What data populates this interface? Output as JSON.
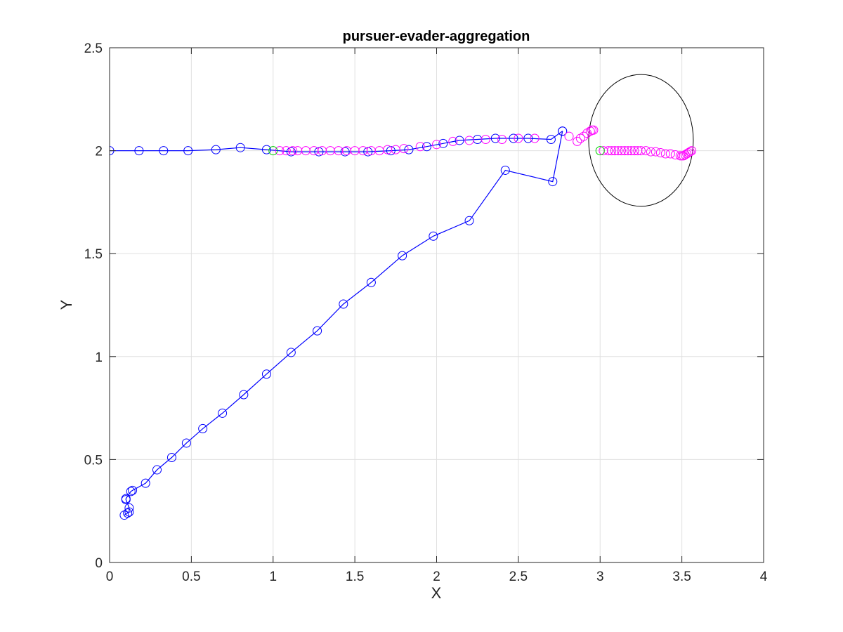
{
  "chart_data": {
    "type": "scatter",
    "title": "pursuer-evader-aggregation",
    "xlabel": "X",
    "ylabel": "Y",
    "xlim": [
      0,
      4
    ],
    "ylim": [
      0,
      2.5
    ],
    "grid": true,
    "x_ticks": [
      "0",
      "0.5",
      "1",
      "1.5",
      "2",
      "2.5",
      "3",
      "3.5",
      "4"
    ],
    "y_ticks": [
      "0",
      "0.5",
      "1",
      "1.5",
      "2",
      "2.5"
    ],
    "x_tick_values": [
      0,
      0.5,
      1,
      1.5,
      2,
      2.5,
      3,
      3.5,
      4
    ],
    "y_tick_values": [
      0,
      0.5,
      1,
      1.5,
      2,
      2.5
    ],
    "colors": {
      "pursuer": "#0000ff",
      "evader": "#ff00ff",
      "start": "#00cc00",
      "circle": "#000000",
      "grid": "#e0e0e0",
      "axes": "#262626"
    },
    "series": [
      {
        "marker": "circle",
        "line": true,
        "color": "#0000ff",
        "x": [
          0.0,
          0.18,
          0.33,
          0.48,
          0.65,
          0.8,
          0.96,
          1.11,
          1.28,
          1.44,
          1.58,
          1.72,
          1.83,
          1.94,
          2.04,
          2.14,
          2.25,
          2.36,
          2.47,
          2.56,
          2.7,
          2.77
        ],
        "y": [
          2.0,
          2.0,
          2.0,
          2.0,
          2.005,
          2.015,
          2.005,
          1.995,
          1.995,
          1.995,
          1.995,
          2.0,
          2.005,
          2.02,
          2.035,
          2.05,
          2.055,
          2.06,
          2.06,
          2.06,
          2.055,
          2.095
        ]
      },
      {
        "marker": "circle",
        "line": true,
        "color": "#0000ff",
        "x": [
          2.77,
          2.71,
          2.42,
          2.2,
          1.98,
          1.79,
          1.6,
          1.43,
          1.27,
          1.11,
          0.96,
          0.82,
          0.69,
          0.57,
          0.47,
          0.38,
          0.29,
          0.22,
          0.14,
          0.13,
          0.1,
          0.1,
          0.12,
          0.12,
          0.11,
          0.09
        ],
        "y": [
          2.095,
          1.85,
          1.905,
          1.66,
          1.585,
          1.49,
          1.36,
          1.255,
          1.125,
          1.02,
          0.915,
          0.815,
          0.725,
          0.65,
          0.58,
          0.51,
          0.45,
          0.385,
          0.35,
          0.345,
          0.31,
          0.305,
          0.265,
          0.245,
          0.24,
          0.23
        ]
      },
      {
        "marker": "circle",
        "line": false,
        "color": "#ff00ff",
        "x": [
          1.04,
          1.08,
          1.12,
          1.15,
          1.2,
          1.25,
          1.3,
          1.35,
          1.4,
          1.45,
          1.5,
          1.55,
          1.6,
          1.65,
          1.7,
          1.75,
          1.8,
          1.9,
          2.0,
          2.1,
          2.2,
          2.3,
          2.4,
          2.5,
          2.6,
          2.81,
          2.86,
          2.88,
          2.9,
          2.92,
          2.94,
          2.95,
          2.96
        ],
        "y": [
          2.0,
          2.0,
          2.0,
          2.0,
          2.0,
          2.0,
          2.0,
          2.0,
          2.0,
          2.0,
          2.0,
          2.0,
          2.0,
          2.0,
          2.005,
          2.005,
          2.01,
          2.02,
          2.03,
          2.045,
          2.05,
          2.055,
          2.055,
          2.06,
          2.06,
          2.07,
          2.045,
          2.06,
          2.07,
          2.085,
          2.095,
          2.1,
          2.1
        ]
      },
      {
        "marker": "circle",
        "line": false,
        "color": "#ff00ff",
        "x": [
          3.02,
          3.05,
          3.07,
          3.09,
          3.11,
          3.13,
          3.15,
          3.17,
          3.19,
          3.21,
          3.23,
          3.25,
          3.28,
          3.31,
          3.34,
          3.37,
          3.4,
          3.43,
          3.46,
          3.49,
          3.5,
          3.51,
          3.52,
          3.53,
          3.54,
          3.55,
          3.56
        ],
        "y": [
          2.0,
          2.0,
          2.0,
          2.0,
          2.0,
          2.0,
          2.0,
          2.0,
          2.0,
          2.0,
          2.0,
          2.0,
          2.0,
          1.995,
          1.995,
          1.99,
          1.985,
          1.985,
          1.98,
          1.975,
          1.975,
          1.975,
          1.98,
          1.985,
          1.99,
          1.995,
          2.0
        ]
      },
      {
        "marker": "circle",
        "line": false,
        "color": "#00cc00",
        "x": [
          1.0,
          3.0
        ],
        "y": [
          2.0,
          2.0
        ]
      }
    ],
    "annotations": [
      {
        "type": "circle-outline",
        "cx": 3.25,
        "cy": 2.05,
        "r": 0.32,
        "color": "#000000"
      }
    ]
  }
}
